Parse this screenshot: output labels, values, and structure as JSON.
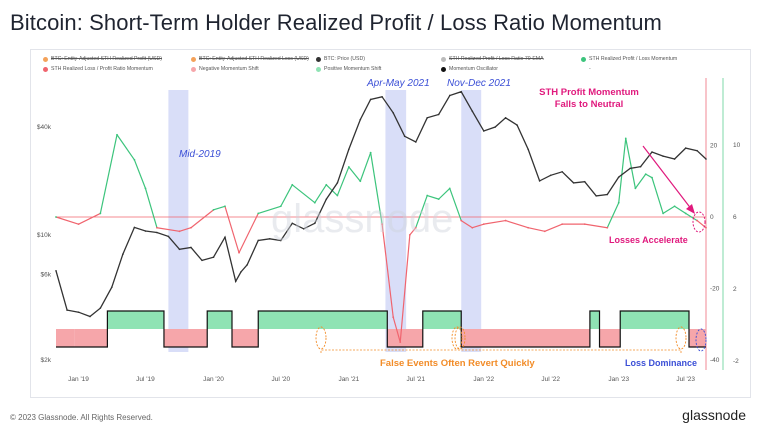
{
  "title": "Bitcoin: Short-Term Holder Realized Profit / Loss Ratio Momentum",
  "legend": [
    {
      "label": "BTC: Entity-Adjusted STH Realized Profit (USD)",
      "color": "#f4a25a",
      "strike": true
    },
    {
      "label": "BTC: Entity-Adjusted STH Realized Loss (USD)",
      "color": "#f4a25a",
      "strike": true
    },
    {
      "label": "BTC: Price (USD)",
      "color": "#333333",
      "strike": false
    },
    {
      "label": "STH Realized Profit / Loss Ratio 70-EMA",
      "color": "#bbbbbb",
      "strike": true
    },
    {
      "label": "STH Realized Profit / Loss Momentum",
      "color": "#3cc47c",
      "strike": false
    },
    {
      "label": "STH Realized Loss / Profit Ratio Momentum",
      "color": "#f0646e",
      "strike": false
    },
    {
      "label": "Negative Momentum Shift",
      "color": "#f6a6aa",
      "strike": false
    },
    {
      "label": "Positive Momentum Shift",
      "color": "#8fe3b4",
      "strike": false
    },
    {
      "label": "Momentum Oscillator",
      "color": "#111111",
      "strike": false
    },
    {
      "label": "-",
      "color": "#ffffff",
      "strike": false
    }
  ],
  "annotations": {
    "mid2019": "Mid-2019",
    "aprmay2021": "Apr-May 2021",
    "novdec2021": "Nov-Dec 2021",
    "profit_momentum": "STH Profit Momentum\nFalls to Neutral",
    "losses_accelerate": "Losses Accelerate",
    "false_events": "False Events Often Revert Quickly",
    "loss_dominance": "Loss Dominance"
  },
  "watermark": "glassnode",
  "footer": {
    "copyright": "© 2023 Glassnode. All Rights Reserved.",
    "brand": "glassnode"
  },
  "colors": {
    "price": "#333333",
    "profit_momentum": "#3cc47c",
    "loss_momentum": "#f0646e",
    "positive_shift": "#8fe3b4",
    "negative_shift": "#f6a6aa",
    "highlight": "#b9c3f2",
    "annotation_blue": "#3b4fd6",
    "annotation_magenta": "#e0197d",
    "annotation_orange": "#f28c28"
  },
  "chart_data": {
    "type": "line",
    "x_ticks": [
      "Jan '19",
      "Jul '19",
      "Jan '20",
      "Jul '20",
      "Jan '21",
      "Jul '21",
      "Jan '22",
      "Jul '22",
      "Jan '23",
      "Jul '23"
    ],
    "x_range": [
      "2018-11-01",
      "2023-08-25"
    ],
    "y_price_ticks": [
      "$2k",
      "$6k",
      "$10k",
      "$40k"
    ],
    "y_price_log": true,
    "y_momentum_ticks": [
      "20",
      "0",
      "-20",
      "-40"
    ],
    "y_momentum_range": [
      -40,
      30
    ],
    "y_right_ticks": [
      "10",
      "6",
      "2",
      "-2"
    ],
    "price_series": {
      "name": "BTC: Price (USD)",
      "x": [
        "2018-11-01",
        "2018-12-01",
        "2019-01-01",
        "2019-02-01",
        "2019-03-01",
        "2019-04-01",
        "2019-05-01",
        "2019-06-01",
        "2019-07-01",
        "2019-08-01",
        "2019-09-01",
        "2019-10-01",
        "2019-11-01",
        "2019-12-01",
        "2020-01-01",
        "2020-02-01",
        "2020-03-01",
        "2020-03-15",
        "2020-04-01",
        "2020-05-01",
        "2020-06-01",
        "2020-07-01",
        "2020-08-01",
        "2020-09-01",
        "2020-10-01",
        "2020-11-01",
        "2020-12-01",
        "2021-01-01",
        "2021-02-01",
        "2021-03-01",
        "2021-04-01",
        "2021-05-01",
        "2021-06-01",
        "2021-07-01",
        "2021-08-01",
        "2021-09-01",
        "2021-10-01",
        "2021-11-01",
        "2021-12-01",
        "2022-01-01",
        "2022-02-01",
        "2022-03-01",
        "2022-04-01",
        "2022-05-01",
        "2022-06-01",
        "2022-07-01",
        "2022-08-01",
        "2022-09-01",
        "2022-10-01",
        "2022-11-01",
        "2022-12-01",
        "2023-01-01",
        "2023-02-01",
        "2023-03-01",
        "2023-04-01",
        "2023-05-01",
        "2023-06-01",
        "2023-07-01",
        "2023-08-01",
        "2023-08-25"
      ],
      "values": [
        6300,
        3800,
        3700,
        3500,
        3900,
        5100,
        7800,
        11000,
        10500,
        10300,
        9800,
        8300,
        8500,
        7200,
        7500,
        9700,
        5500,
        6200,
        6800,
        9300,
        9500,
        9300,
        11600,
        10800,
        11600,
        15800,
        19500,
        30000,
        44000,
        57000,
        59000,
        48000,
        35500,
        33000,
        45000,
        47000,
        60000,
        63000,
        49000,
        38000,
        40000,
        45000,
        41000,
        30000,
        20000,
        21500,
        22500,
        19500,
        19800,
        16500,
        16800,
        21000,
        23500,
        24000,
        29000,
        27500,
        26500,
        30500,
        29500,
        26500
      ]
    },
    "momentum_series": {
      "name": "STH Realized Profit / Loss Momentum",
      "note": "green above zero, red below zero",
      "x": [
        "2018-11-01",
        "2019-01-01",
        "2019-03-01",
        "2019-04-15",
        "2019-06-01",
        "2019-07-01",
        "2019-08-01",
        "2019-10-01",
        "2019-11-01",
        "2020-01-01",
        "2020-02-01",
        "2020-03-10",
        "2020-05-01",
        "2020-07-01",
        "2020-08-01",
        "2020-10-01",
        "2020-11-01",
        "2020-12-01",
        "2021-01-01",
        "2021-02-01",
        "2021-03-01",
        "2021-04-01",
        "2021-05-01",
        "2021-05-20",
        "2021-06-15",
        "2021-07-01",
        "2021-08-01",
        "2021-09-01",
        "2021-10-01",
        "2021-11-01",
        "2021-12-01",
        "2022-01-01",
        "2022-03-01",
        "2022-05-01",
        "2022-06-15",
        "2022-08-01",
        "2022-10-01",
        "2022-12-01",
        "2023-01-01",
        "2023-01-20",
        "2023-02-15",
        "2023-03-15",
        "2023-04-01",
        "2023-05-01",
        "2023-06-01",
        "2023-07-01",
        "2023-08-01",
        "2023-08-25"
      ],
      "values": [
        0,
        -2,
        1,
        23,
        16,
        8,
        -3,
        -4,
        -3,
        2,
        3,
        -10,
        1,
        3,
        9,
        4,
        9,
        6,
        14,
        10,
        18,
        -2,
        -28,
        -35,
        -5,
        -3,
        6,
        5,
        8,
        -1,
        -3,
        -2,
        -1,
        -3,
        -4,
        -2,
        -2,
        -3,
        4,
        22,
        8,
        12,
        11,
        1,
        3,
        1,
        -1,
        -3
      ]
    }
  }
}
